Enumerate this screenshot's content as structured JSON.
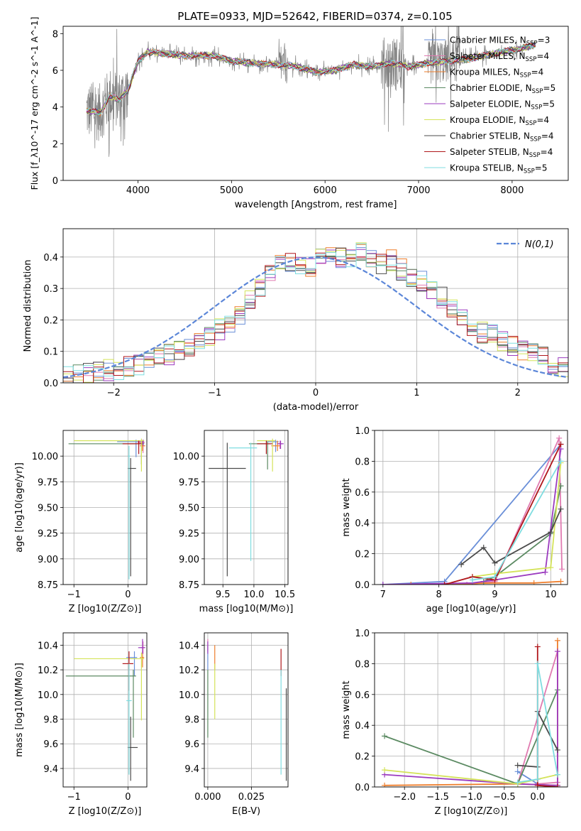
{
  "figure_title": "PLATE=0933, MJD=52642, FIBERID=0374, z=0.105",
  "models": [
    {
      "name": "Chabrier MILES, N",
      "sub": "SSP",
      "suffix": "=3",
      "color": "#6a8fd8"
    },
    {
      "name": "Salpeter MILES, N",
      "sub": "SSP",
      "suffix": "=4",
      "color": "#e07ab0"
    },
    {
      "name": "Kroupa MILES, N",
      "sub": "SSP",
      "suffix": "=4",
      "color": "#ee7d2b"
    },
    {
      "name": "Chabrier ELODIE, N",
      "sub": "SSP",
      "suffix": "=5",
      "color": "#5b8a62"
    },
    {
      "name": "Salpeter ELODIE, N",
      "sub": "SSP",
      "suffix": "=5",
      "color": "#9b3bbf"
    },
    {
      "name": "Kroupa ELODIE, N",
      "sub": "SSP",
      "suffix": "=4",
      "color": "#d4e35a"
    },
    {
      "name": "Chabrier STELIB, N",
      "sub": "SSP",
      "suffix": "=4",
      "color": "#4b4b4b"
    },
    {
      "name": "Salpeter STELIB, N",
      "sub": "SSP",
      "suffix": "=4",
      "color": "#b0171b"
    },
    {
      "name": "Kroupa STELIB, N",
      "sub": "SSP",
      "suffix": "=5",
      "color": "#7fdde0"
    }
  ],
  "data_color": "#808080",
  "chart_data": [
    {
      "id": "spectrum",
      "type": "line",
      "xlabel": "wavelength [Angstrom, rest frame]",
      "ylabel": "Flux [f_λ10^-17 erg cm^-2 s^-1 A^-1]",
      "xlim": [
        3200,
        8600
      ],
      "ylim": [
        0,
        8.4
      ],
      "xticks": [
        4000,
        5000,
        6000,
        7000,
        8000
      ],
      "yticks": [
        0,
        2,
        4,
        6,
        8
      ],
      "legend_position": "right",
      "continuum": {
        "x": [
          3450,
          3600,
          3700,
          3800,
          3900,
          4000,
          4100,
          4300,
          4500,
          4800,
          5000,
          5200,
          5500,
          5700,
          5900,
          6100,
          6300,
          6500,
          6700,
          6900,
          7100,
          7300,
          7500,
          7700,
          7900,
          8100,
          8250
        ],
        "y": [
          3.8,
          3.7,
          4.6,
          4.4,
          5.0,
          6.5,
          7.0,
          6.9,
          6.8,
          6.8,
          6.5,
          6.4,
          6.3,
          6.2,
          5.9,
          6.0,
          6.3,
          6.2,
          6.4,
          6.2,
          6.4,
          6.5,
          6.6,
          6.8,
          7.0,
          7.2,
          7.4
        ]
      }
    },
    {
      "id": "residuals",
      "type": "step",
      "xlabel": "(data-model)/error",
      "ylabel": "Normed distribution",
      "xlim": [
        -2.5,
        2.5
      ],
      "ylim": [
        0,
        0.49
      ],
      "xticks": [
        -2,
        -1,
        0,
        1,
        2
      ],
      "yticks": [
        0.0,
        0.1,
        0.2,
        0.3,
        0.4
      ],
      "legend": "N(0,1)",
      "legend_position": "top-right",
      "normal_curve": {
        "mean": 0,
        "sigma": 1
      },
      "bin_edges": [
        -2.5,
        -2.4,
        -2.3,
        -2.2,
        -2.1,
        -2.0,
        -1.9,
        -1.8,
        -1.7,
        -1.6,
        -1.5,
        -1.4,
        -1.3,
        -1.2,
        -1.1,
        -1.0,
        -0.9,
        -0.8,
        -0.7,
        -0.6,
        -0.5,
        -0.4,
        -0.3,
        -0.2,
        -0.1,
        0.0,
        0.1,
        0.2,
        0.3,
        0.4,
        0.5,
        0.6,
        0.7,
        0.8,
        0.9,
        1.0,
        1.1,
        1.2,
        1.3,
        1.4,
        1.5,
        1.6,
        1.7,
        1.8,
        1.9,
        2.0,
        2.1,
        2.2,
        2.3,
        2.4,
        2.5
      ],
      "base_density": [
        0.02,
        0.025,
        0.03,
        0.035,
        0.04,
        0.045,
        0.05,
        0.06,
        0.07,
        0.08,
        0.09,
        0.1,
        0.115,
        0.13,
        0.15,
        0.17,
        0.19,
        0.22,
        0.26,
        0.3,
        0.35,
        0.38,
        0.38,
        0.37,
        0.37,
        0.4,
        0.42,
        0.4,
        0.4,
        0.42,
        0.4,
        0.38,
        0.39,
        0.36,
        0.34,
        0.32,
        0.3,
        0.27,
        0.24,
        0.21,
        0.18,
        0.16,
        0.15,
        0.13,
        0.12,
        0.1,
        0.09,
        0.08,
        0.06,
        0.05
      ]
    },
    {
      "id": "age_vs_Z",
      "type": "errorbar",
      "xlabel": "Z [log10(Z/Z⊙)]",
      "ylabel": "age  [log10(age/yr)]",
      "xlim": [
        -1.2,
        0.35
      ],
      "ylim": [
        8.75,
        10.25
      ],
      "xticks": [
        -1,
        0
      ],
      "yticks": [
        8.75,
        9.0,
        9.25,
        9.5,
        9.75,
        10.0
      ],
      "points": [
        {
          "x": 0.15,
          "y": 10.14,
          "xerr": [
            0.35,
            0.05
          ],
          "yerr": [
            0.15,
            0.02
          ]
        },
        {
          "x": 0.28,
          "y": 10.13,
          "xerr": [
            0.1,
            0.03
          ],
          "yerr": [
            0.1,
            0.03
          ]
        },
        {
          "x": 0.27,
          "y": 10.1,
          "xerr": [
            0.05,
            0.05
          ],
          "yerr": [
            0.05,
            0.05
          ]
        },
        {
          "x": 0.25,
          "y": 10.12,
          "xerr": [
            1.35,
            0.05
          ],
          "yerr": [
            0.2,
            0.02
          ]
        },
        {
          "x": 0.28,
          "y": 10.14,
          "xerr": [
            0.1,
            0.02
          ],
          "yerr": [
            0.04,
            0.02
          ]
        },
        {
          "x": 0.25,
          "y": 10.15,
          "xerr": [
            1.25,
            0.05
          ],
          "yerr": [
            0.3,
            0.02
          ]
        },
        {
          "x": 0.05,
          "y": 9.88,
          "xerr": [
            0.05,
            0.1
          ],
          "yerr": [
            1.05,
            0.1
          ]
        },
        {
          "x": 0.2,
          "y": 10.12,
          "xerr": [
            0.3,
            0.05
          ],
          "yerr": [
            0.1,
            0.03
          ]
        },
        {
          "x": 0.02,
          "y": 10.0,
          "xerr": [
            0.02,
            0.02
          ],
          "yerr": [
            1.2,
            0.1
          ]
        }
      ]
    },
    {
      "id": "age_vs_mass",
      "type": "errorbar",
      "xlabel": "mass [log10(M/M⊙)]",
      "ylabel": "",
      "xlim": [
        9.2,
        10.55
      ],
      "ylim": [
        8.75,
        10.25
      ],
      "xticks": [
        9.5,
        10.0,
        10.5
      ],
      "yticks": [
        8.75,
        9.0,
        9.25,
        9.5,
        9.75,
        10.0
      ],
      "points": [
        {
          "x": 10.35,
          "y": 10.14,
          "xerr": [
            0.15,
            0.05
          ],
          "yerr": [
            0.1,
            0.02
          ]
        },
        {
          "x": 10.42,
          "y": 10.12,
          "xerr": [
            0.05,
            0.03
          ],
          "yerr": [
            0.05,
            0.03
          ]
        },
        {
          "x": 10.38,
          "y": 10.1,
          "xerr": [
            0.1,
            0.05
          ],
          "yerr": [
            0.05,
            0.05
          ]
        },
        {
          "x": 10.22,
          "y": 10.12,
          "xerr": [
            0.3,
            0.05
          ],
          "yerr": [
            0.25,
            0.02
          ]
        },
        {
          "x": 10.43,
          "y": 10.12,
          "xerr": [
            0.05,
            0.05
          ],
          "yerr": [
            0.05,
            0.03
          ]
        },
        {
          "x": 10.3,
          "y": 10.15,
          "xerr": [
            0.25,
            0.05
          ],
          "yerr": [
            0.3,
            0.02
          ]
        },
        {
          "x": 9.57,
          "y": 9.88,
          "xerr": [
            0.3,
            0.3
          ],
          "yerr": [
            1.05,
            0.25
          ]
        },
        {
          "x": 10.2,
          "y": 10.12,
          "xerr": [
            0.15,
            0.1
          ],
          "yerr": [
            0.1,
            0.03
          ]
        },
        {
          "x": 9.95,
          "y": 10.08,
          "xerr": [
            0.35,
            0.1
          ],
          "yerr": [
            1.1,
            0.05
          ]
        }
      ]
    },
    {
      "id": "weight_vs_age",
      "type": "line",
      "xlabel": "age  [log10(age/yr)]",
      "ylabel": "mass weight",
      "xlim": [
        6.85,
        10.3
      ],
      "ylim": [
        0,
        1.0
      ],
      "xticks": [
        7,
        8,
        9,
        10
      ],
      "yticks": [
        0.0,
        0.2,
        0.4,
        0.6,
        0.8,
        1.0
      ],
      "series": [
        {
          "x": [
            7.0,
            8.1,
            10.18
          ],
          "y": [
            0.0,
            0.02,
            0.91
          ]
        },
        {
          "x": [
            8.5,
            9.0,
            10.15,
            10.2
          ],
          "y": [
            0.0,
            0.02,
            0.95,
            0.1
          ]
        },
        {
          "x": [
            7.5,
            9.0,
            9.7,
            10.18
          ],
          "y": [
            0.0,
            0.01,
            0.01,
            0.02
          ]
        },
        {
          "x": [
            8.8,
            9.0,
            10.0,
            10.18
          ],
          "y": [
            0.02,
            0.05,
            0.33,
            0.64
          ]
        },
        {
          "x": [
            7.0,
            8.6,
            9.0,
            9.9,
            10.18
          ],
          "y": [
            0.0,
            0.01,
            0.03,
            0.08,
            0.88
          ]
        },
        {
          "x": [
            8.6,
            9.0,
            10.0,
            10.18
          ],
          "y": [
            0.05,
            0.07,
            0.11,
            0.79
          ]
        },
        {
          "x": [
            8.4,
            8.8,
            9.0,
            10.0,
            10.18
          ],
          "y": [
            0.13,
            0.24,
            0.14,
            0.34,
            0.49
          ]
        },
        {
          "x": [
            8.1,
            8.6,
            9.0,
            10.18
          ],
          "y": [
            0.0,
            0.05,
            0.03,
            0.91
          ]
        },
        {
          "x": [
            8.6,
            9.0,
            10.18
          ],
          "y": [
            0.03,
            0.05,
            0.8
          ]
        }
      ]
    },
    {
      "id": "mass_vs_Z",
      "type": "errorbar",
      "xlabel": "Z [log10(Z/Z⊙)]",
      "ylabel": "mass [log10(M/M⊙)]",
      "xlim": [
        -1.2,
        0.35
      ],
      "ylim": [
        9.25,
        10.5
      ],
      "xticks": [
        -1,
        0
      ],
      "yticks": [
        9.4,
        9.6,
        9.8,
        10.0,
        10.2,
        10.4
      ],
      "points": [
        {
          "x": 0.12,
          "y": 10.3,
          "xerr": [
            0.15,
            0.05
          ],
          "yerr": [
            0.15,
            0.05
          ]
        },
        {
          "x": 0.28,
          "y": 10.38,
          "xerr": [
            0.05,
            0.03
          ],
          "yerr": [
            0.05,
            0.05
          ]
        },
        {
          "x": 0.27,
          "y": 10.3,
          "xerr": [
            0.05,
            0.03
          ],
          "yerr": [
            0.08,
            0.05
          ]
        },
        {
          "x": 0.1,
          "y": 10.15,
          "xerr": [
            1.25,
            0.05
          ],
          "yerr": [
            0.5,
            0.05
          ]
        },
        {
          "x": 0.27,
          "y": 10.38,
          "xerr": [
            0.08,
            0.05
          ],
          "yerr": [
            0.05,
            0.07
          ]
        },
        {
          "x": 0.25,
          "y": 10.29,
          "xerr": [
            1.25,
            0.05
          ],
          "yerr": [
            0.5,
            0.05
          ]
        },
        {
          "x": 0.05,
          "y": 9.57,
          "xerr": [
            0.05,
            0.13
          ],
          "yerr": [
            0.27,
            0.25
          ]
        },
        {
          "x": 0.02,
          "y": 10.25,
          "xerr": [
            0.12,
            0.08
          ],
          "yerr": [
            0.22,
            0.1
          ]
        },
        {
          "x": 0.02,
          "y": 9.95,
          "xerr": [
            0.05,
            0.05
          ],
          "yerr": [
            0.6,
            0.3
          ]
        }
      ]
    },
    {
      "id": "mass_vs_EBV",
      "type": "errorbar",
      "xlabel": "E(B-V)",
      "ylabel": "",
      "xlim": [
        -0.002,
        0.046
      ],
      "ylim": [
        9.25,
        10.5
      ],
      "xticks": [
        0.0,
        0.025
      ],
      "yticks": [
        9.4,
        9.6,
        9.8,
        10.0,
        10.2,
        10.4
      ],
      "points": [
        {
          "x": 0.0,
          "y": 10.35,
          "yerr": [
            0.15,
            0.05
          ]
        },
        {
          "x": 0.0,
          "y": 10.4,
          "yerr": [
            0.05,
            0.05
          ]
        },
        {
          "x": 0.004,
          "y": 10.3,
          "yerr": [
            0.1,
            0.1
          ]
        },
        {
          "x": 0.0,
          "y": 10.15,
          "yerr": [
            0.5,
            0.05
          ]
        },
        {
          "x": 0.0,
          "y": 10.38,
          "yerr": [
            0.05,
            0.05
          ]
        },
        {
          "x": 0.004,
          "y": 10.2,
          "yerr": [
            0.4,
            0.05
          ]
        },
        {
          "x": 0.045,
          "y": 9.7,
          "yerr": [
            0.4,
            0.35
          ]
        },
        {
          "x": 0.042,
          "y": 10.25,
          "yerr": [
            0.1,
            0.12
          ]
        },
        {
          "x": 0.042,
          "y": 9.8,
          "yerr": [
            0.45,
            0.4
          ]
        }
      ]
    },
    {
      "id": "weight_vs_Z",
      "type": "line",
      "xlabel": "Z [log10(Z/Z⊙)]",
      "ylabel": "mass weight",
      "xlim": [
        -2.45,
        0.45
      ],
      "ylim": [
        0,
        1.0
      ],
      "xticks": [
        -2.0,
        -1.5,
        -1.0,
        -0.5,
        0.0
      ],
      "yticks": [
        0.0,
        0.2,
        0.4,
        0.6,
        0.8,
        1.0
      ],
      "series": [
        {
          "x": [
            -0.3,
            0.0,
            0.3
          ],
          "y": [
            0.1,
            0.02,
            0.0
          ]
        },
        {
          "x": [
            -0.3,
            0.3,
            0.3,
            0.0
          ],
          "y": [
            0.02,
            0.88,
            0.03,
            0.02
          ]
        },
        {
          "x": [
            -2.3,
            -0.3,
            0.3,
            0.3
          ],
          "y": [
            0.01,
            0.02,
            0.01,
            0.95
          ]
        },
        {
          "x": [
            -2.3,
            -0.3,
            0.3
          ],
          "y": [
            0.33,
            0.02,
            0.63
          ]
        },
        {
          "x": [
            -2.3,
            -0.3,
            0.3,
            0.3
          ],
          "y": [
            0.08,
            0.02,
            0.01,
            0.88
          ]
        },
        {
          "x": [
            -2.3,
            -0.3,
            0.3
          ],
          "y": [
            0.11,
            0.02,
            0.08
          ]
        },
        {
          "x": [
            -0.3,
            0.0,
            0.0,
            0.3
          ],
          "y": [
            0.14,
            0.13,
            0.49,
            0.24
          ]
        },
        {
          "x": [
            0.0,
            0.0,
            0.3
          ],
          "y": [
            0.91,
            0.01,
            0.0
          ]
        },
        {
          "x": [
            -0.3,
            0.0,
            0.0,
            0.3
          ],
          "y": [
            0.03,
            0.05,
            0.8,
            0.08
          ]
        }
      ]
    }
  ]
}
